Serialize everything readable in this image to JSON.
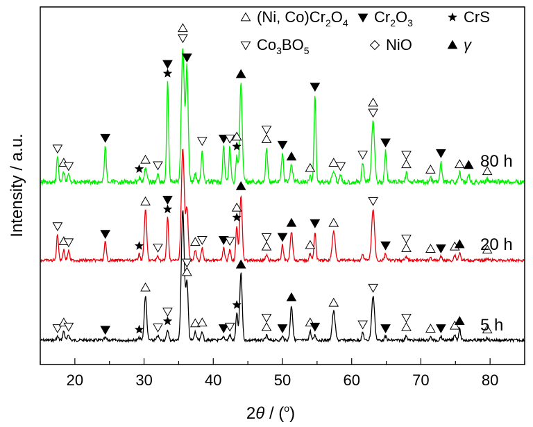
{
  "chart_data": {
    "type": "line",
    "xlabel": {
      "sym": "2",
      "theta": "θ",
      "rest": " / (",
      "deg": "o",
      "close": ")"
    },
    "ylabel": "Intensity / a.u.",
    "xlim": [
      15,
      85
    ],
    "xticks": [
      20,
      30,
      40,
      50,
      60,
      70,
      80
    ],
    "grid": false,
    "series": [
      {
        "name": "5 h",
        "color": "#000000",
        "baseline": 0,
        "peaks": [
          [
            17.5,
            0.05,
            0.2
          ],
          [
            18.4,
            0.12,
            0.2
          ],
          [
            19.1,
            0.07,
            0.2
          ],
          [
            24.4,
            0.03,
            0.2
          ],
          [
            29.3,
            0.03,
            0.2
          ],
          [
            30.2,
            0.58,
            0.25
          ],
          [
            32.0,
            0.06,
            0.2
          ],
          [
            33.4,
            0.14,
            0.2
          ],
          [
            35.6,
            1.72,
            0.3
          ],
          [
            36.2,
            0.75,
            0.25
          ],
          [
            37.4,
            0.11,
            0.2
          ],
          [
            38.4,
            0.12,
            0.2
          ],
          [
            41.5,
            0.05,
            0.2
          ],
          [
            42.4,
            0.07,
            0.2
          ],
          [
            43.4,
            0.35,
            0.2
          ],
          [
            44.0,
            0.88,
            0.25
          ],
          [
            47.7,
            0.06,
            0.2
          ],
          [
            50.0,
            0.05,
            0.2
          ],
          [
            51.3,
            0.45,
            0.25
          ],
          [
            54.0,
            0.12,
            0.2
          ],
          [
            54.7,
            0.07,
            0.2
          ],
          [
            57.4,
            0.38,
            0.3
          ],
          [
            61.6,
            0.1,
            0.2
          ],
          [
            63.1,
            0.58,
            0.3
          ],
          [
            64.9,
            0.05,
            0.2
          ],
          [
            67.9,
            0.06,
            0.2
          ],
          [
            71.4,
            0.04,
            0.2
          ],
          [
            72.9,
            0.05,
            0.2
          ],
          [
            74.9,
            0.08,
            0.2
          ],
          [
            75.6,
            0.14,
            0.2
          ],
          [
            79.6,
            0.03,
            0.2
          ]
        ]
      },
      {
        "name": "20 h",
        "color": "#e8000b",
        "baseline": 1,
        "peaks": [
          [
            17.5,
            0.34,
            0.2
          ],
          [
            18.4,
            0.14,
            0.2
          ],
          [
            19.1,
            0.13,
            0.2
          ],
          [
            24.4,
            0.24,
            0.2
          ],
          [
            29.3,
            0.08,
            0.2
          ],
          [
            30.2,
            0.66,
            0.25
          ],
          [
            32.0,
            0.06,
            0.2
          ],
          [
            33.4,
            0.56,
            0.2
          ],
          [
            35.6,
            1.46,
            0.3
          ],
          [
            36.2,
            0.68,
            0.25
          ],
          [
            37.4,
            0.13,
            0.2
          ],
          [
            38.4,
            0.16,
            0.2
          ],
          [
            41.5,
            0.16,
            0.2
          ],
          [
            42.4,
            0.15,
            0.2
          ],
          [
            43.4,
            0.45,
            0.2
          ],
          [
            44.0,
            0.86,
            0.25
          ],
          [
            47.7,
            0.07,
            0.2
          ],
          [
            50.0,
            0.2,
            0.2
          ],
          [
            51.3,
            0.38,
            0.25
          ],
          [
            54.0,
            0.09,
            0.2
          ],
          [
            54.7,
            0.38,
            0.2
          ],
          [
            57.4,
            0.38,
            0.3
          ],
          [
            61.6,
            0.07,
            0.2
          ],
          [
            63.1,
            0.67,
            0.3
          ],
          [
            64.9,
            0.09,
            0.2
          ],
          [
            67.9,
            0.05,
            0.2
          ],
          [
            71.4,
            0.04,
            0.2
          ],
          [
            72.9,
            0.05,
            0.2
          ],
          [
            74.9,
            0.07,
            0.2
          ],
          [
            75.6,
            0.1,
            0.2
          ],
          [
            79.6,
            0.03,
            0.2
          ]
        ]
      },
      {
        "name": "80 h",
        "color": "#00ee00",
        "baseline": 2,
        "peaks": [
          [
            17.5,
            0.33,
            0.2
          ],
          [
            18.4,
            0.14,
            0.2
          ],
          [
            19.1,
            0.1,
            0.2
          ],
          [
            24.4,
            0.47,
            0.2
          ],
          [
            29.3,
            0.06,
            0.2
          ],
          [
            30.2,
            0.18,
            0.25
          ],
          [
            32.0,
            0.11,
            0.2
          ],
          [
            33.4,
            1.31,
            0.2
          ],
          [
            35.6,
            1.77,
            0.3
          ],
          [
            36.2,
            1.49,
            0.25
          ],
          [
            37.4,
            0.11,
            0.2
          ],
          [
            38.4,
            0.43,
            0.2
          ],
          [
            41.5,
            0.46,
            0.2
          ],
          [
            42.4,
            0.46,
            0.2
          ],
          [
            43.4,
            0.35,
            0.2
          ],
          [
            44.0,
            1.3,
            0.25
          ],
          [
            47.7,
            0.45,
            0.2
          ],
          [
            50.0,
            0.38,
            0.2
          ],
          [
            51.3,
            0.22,
            0.25
          ],
          [
            54.0,
            0.07,
            0.2
          ],
          [
            54.7,
            1.14,
            0.2
          ],
          [
            57.4,
            0.14,
            0.3
          ],
          [
            58.4,
            0.1,
            0.2
          ],
          [
            61.6,
            0.25,
            0.2
          ],
          [
            63.1,
            0.8,
            0.3
          ],
          [
            64.9,
            0.41,
            0.2
          ],
          [
            67.9,
            0.12,
            0.2
          ],
          [
            71.4,
            0.05,
            0.2
          ],
          [
            72.9,
            0.27,
            0.2
          ],
          [
            75.6,
            0.12,
            0.2
          ],
          [
            76.9,
            0.11,
            0.2
          ],
          [
            79.6,
            0.03,
            0.2
          ]
        ]
      }
    ],
    "legend": [
      {
        "marker": "triangle-open",
        "label": "(Ni, Co)Cr",
        "sub1": "2",
        "mid": "O",
        "sub2": "4",
        "tail": ""
      },
      {
        "marker": "triangle-down-filled",
        "label": "Cr",
        "sub1": "2",
        "mid": "O",
        "sub2": "3",
        "tail": ""
      },
      {
        "marker": "star-filled",
        "label": "CrS",
        "sub1": "",
        "mid": "",
        "sub2": "",
        "tail": ""
      },
      {
        "marker": "triangle-down-open",
        "label": "Co",
        "sub1": "3",
        "mid": "BO",
        "sub2": "5",
        "tail": ""
      },
      {
        "marker": "diamond-open",
        "label": "NiO",
        "sub1": "",
        "mid": "",
        "sub2": "",
        "tail": ""
      },
      {
        "marker": "triangle-filled",
        "label": "γ",
        "sub1": "",
        "mid": "",
        "sub2": "",
        "tail": ""
      }
    ],
    "annotations": [
      {
        "t": "ud",
        "x": 17.5,
        "s": 0
      },
      {
        "t": "u",
        "x": 18.4,
        "s": 0
      },
      {
        "t": "ud",
        "x": 19.1,
        "s": 0
      },
      {
        "t": "df",
        "x": 24.4,
        "s": 0
      },
      {
        "t": "star",
        "x": 29.3,
        "s": 0
      },
      {
        "t": "u",
        "x": 30.2,
        "s": 0
      },
      {
        "t": "ud",
        "x": 32.0,
        "s": 0
      },
      {
        "t": "star",
        "x": 33.4,
        "s": 0
      },
      {
        "t": "ud",
        "x": 33.4,
        "s": 0,
        "o": -14
      },
      {
        "t": "u",
        "x": 36.2,
        "s": 0
      },
      {
        "t": "ud",
        "x": 36.2,
        "s": 0,
        "o": -14
      },
      {
        "t": "u",
        "x": 37.4,
        "s": 0
      },
      {
        "t": "u",
        "x": 38.4,
        "s": 0
      },
      {
        "t": "df",
        "x": 41.5,
        "s": 0
      },
      {
        "t": "ud",
        "x": 42.4,
        "s": 0
      },
      {
        "t": "star",
        "x": 43.4,
        "s": 0
      },
      {
        "t": "uf",
        "x": 44.0,
        "s": 0
      },
      {
        "t": "u",
        "x": 47.7,
        "s": 0
      },
      {
        "t": "ud",
        "x": 47.7,
        "s": 0,
        "o": -14
      },
      {
        "t": "df",
        "x": 50.0,
        "s": 0
      },
      {
        "t": "uf",
        "x": 51.3,
        "s": 0
      },
      {
        "t": "u",
        "x": 54.0,
        "s": 0
      },
      {
        "t": "df",
        "x": 54.7,
        "s": 0
      },
      {
        "t": "u",
        "x": 57.4,
        "s": 0
      },
      {
        "t": "ud",
        "x": 61.6,
        "s": 0
      },
      {
        "t": "ud",
        "x": 63.1,
        "s": 0
      },
      {
        "t": "df",
        "x": 64.9,
        "s": 0
      },
      {
        "t": "u",
        "x": 67.9,
        "s": 0
      },
      {
        "t": "ud",
        "x": 67.9,
        "s": 0,
        "o": -14
      },
      {
        "t": "u",
        "x": 71.4,
        "s": 0
      },
      {
        "t": "df",
        "x": 72.9,
        "s": 0
      },
      {
        "t": "u",
        "x": 74.9,
        "s": 0
      },
      {
        "t": "uf",
        "x": 75.6,
        "s": 0
      },
      {
        "t": "u",
        "x": 79.6,
        "s": 0
      },
      {
        "t": "ud",
        "x": 17.5,
        "s": 1
      },
      {
        "t": "u",
        "x": 18.4,
        "s": 1
      },
      {
        "t": "ud",
        "x": 19.1,
        "s": 1
      },
      {
        "t": "df",
        "x": 24.4,
        "s": 1
      },
      {
        "t": "star",
        "x": 29.3,
        "s": 1
      },
      {
        "t": "u",
        "x": 30.2,
        "s": 1
      },
      {
        "t": "ud",
        "x": 32.0,
        "s": 1
      },
      {
        "t": "star",
        "x": 33.4,
        "s": 1
      },
      {
        "t": "df",
        "x": 33.4,
        "s": 1,
        "o": -14
      },
      {
        "t": "u",
        "x": 37.4,
        "s": 1
      },
      {
        "t": "ud",
        "x": 38.4,
        "s": 1
      },
      {
        "t": "df",
        "x": 41.5,
        "s": 1
      },
      {
        "t": "ud",
        "x": 42.4,
        "s": 1
      },
      {
        "t": "star",
        "x": 43.4,
        "s": 1
      },
      {
        "t": "u",
        "x": 43.4,
        "s": 1,
        "o": -14
      },
      {
        "t": "uf",
        "x": 44.0,
        "s": 1
      },
      {
        "t": "u",
        "x": 47.7,
        "s": 1
      },
      {
        "t": "ud",
        "x": 47.7,
        "s": 1,
        "o": -14
      },
      {
        "t": "df",
        "x": 50.0,
        "s": 1
      },
      {
        "t": "uf",
        "x": 51.3,
        "s": 1
      },
      {
        "t": "u",
        "x": 54.0,
        "s": 1
      },
      {
        "t": "df",
        "x": 54.7,
        "s": 1
      },
      {
        "t": "u",
        "x": 57.4,
        "s": 1
      },
      {
        "t": "ud",
        "x": 63.1,
        "s": 1
      },
      {
        "t": "df",
        "x": 64.9,
        "s": 1
      },
      {
        "t": "u",
        "x": 67.9,
        "s": 1
      },
      {
        "t": "ud",
        "x": 67.9,
        "s": 1,
        "o": -14
      },
      {
        "t": "u",
        "x": 71.4,
        "s": 1
      },
      {
        "t": "df",
        "x": 72.9,
        "s": 1
      },
      {
        "t": "u",
        "x": 74.9,
        "s": 1
      },
      {
        "t": "uf",
        "x": 75.6,
        "s": 1
      },
      {
        "t": "u",
        "x": 79.6,
        "s": 1
      },
      {
        "t": "ud",
        "x": 17.5,
        "s": 2
      },
      {
        "t": "u",
        "x": 18.4,
        "s": 2
      },
      {
        "t": "ud",
        "x": 19.1,
        "s": 2
      },
      {
        "t": "df",
        "x": 24.4,
        "s": 2
      },
      {
        "t": "star",
        "x": 29.3,
        "s": 2
      },
      {
        "t": "u",
        "x": 30.2,
        "s": 2
      },
      {
        "t": "ud",
        "x": 32.0,
        "s": 2
      },
      {
        "t": "star",
        "x": 33.4,
        "s": 2
      },
      {
        "t": "df",
        "x": 33.4,
        "s": 2,
        "o": -14
      },
      {
        "t": "ud",
        "x": 35.6,
        "s": 2
      },
      {
        "t": "u",
        "x": 35.6,
        "s": 2,
        "o": -14
      },
      {
        "t": "df",
        "x": 36.2,
        "s": 2
      },
      {
        "t": "ud",
        "x": 38.4,
        "s": 2
      },
      {
        "t": "df",
        "x": 41.5,
        "s": 2
      },
      {
        "t": "ud",
        "x": 42.4,
        "s": 2
      },
      {
        "t": "star",
        "x": 43.4,
        "s": 2
      },
      {
        "t": "u",
        "x": 43.4,
        "s": 2,
        "o": -14
      },
      {
        "t": "uf",
        "x": 44.0,
        "s": 2
      },
      {
        "t": "u",
        "x": 47.7,
        "s": 2
      },
      {
        "t": "ud",
        "x": 47.7,
        "s": 2,
        "o": -14
      },
      {
        "t": "df",
        "x": 50.0,
        "s": 2
      },
      {
        "t": "uf",
        "x": 51.3,
        "s": 2
      },
      {
        "t": "u",
        "x": 54.0,
        "s": 2
      },
      {
        "t": "df",
        "x": 54.7,
        "s": 2
      },
      {
        "t": "u",
        "x": 57.4,
        "s": 2
      },
      {
        "t": "ud",
        "x": 58.4,
        "s": 2
      },
      {
        "t": "ud",
        "x": 61.6,
        "s": 2
      },
      {
        "t": "ud",
        "x": 63.1,
        "s": 2
      },
      {
        "t": "u",
        "x": 63.1,
        "s": 2,
        "o": -14
      },
      {
        "t": "df",
        "x": 64.9,
        "s": 2
      },
      {
        "t": "u",
        "x": 67.9,
        "s": 2
      },
      {
        "t": "ud",
        "x": 67.9,
        "s": 2,
        "o": -14
      },
      {
        "t": "u",
        "x": 71.4,
        "s": 2
      },
      {
        "t": "df",
        "x": 72.9,
        "s": 2
      },
      {
        "t": "u",
        "x": 75.6,
        "s": 2
      },
      {
        "t": "uf",
        "x": 76.9,
        "s": 2
      },
      {
        "t": "u",
        "x": 79.6,
        "s": 2
      }
    ]
  }
}
